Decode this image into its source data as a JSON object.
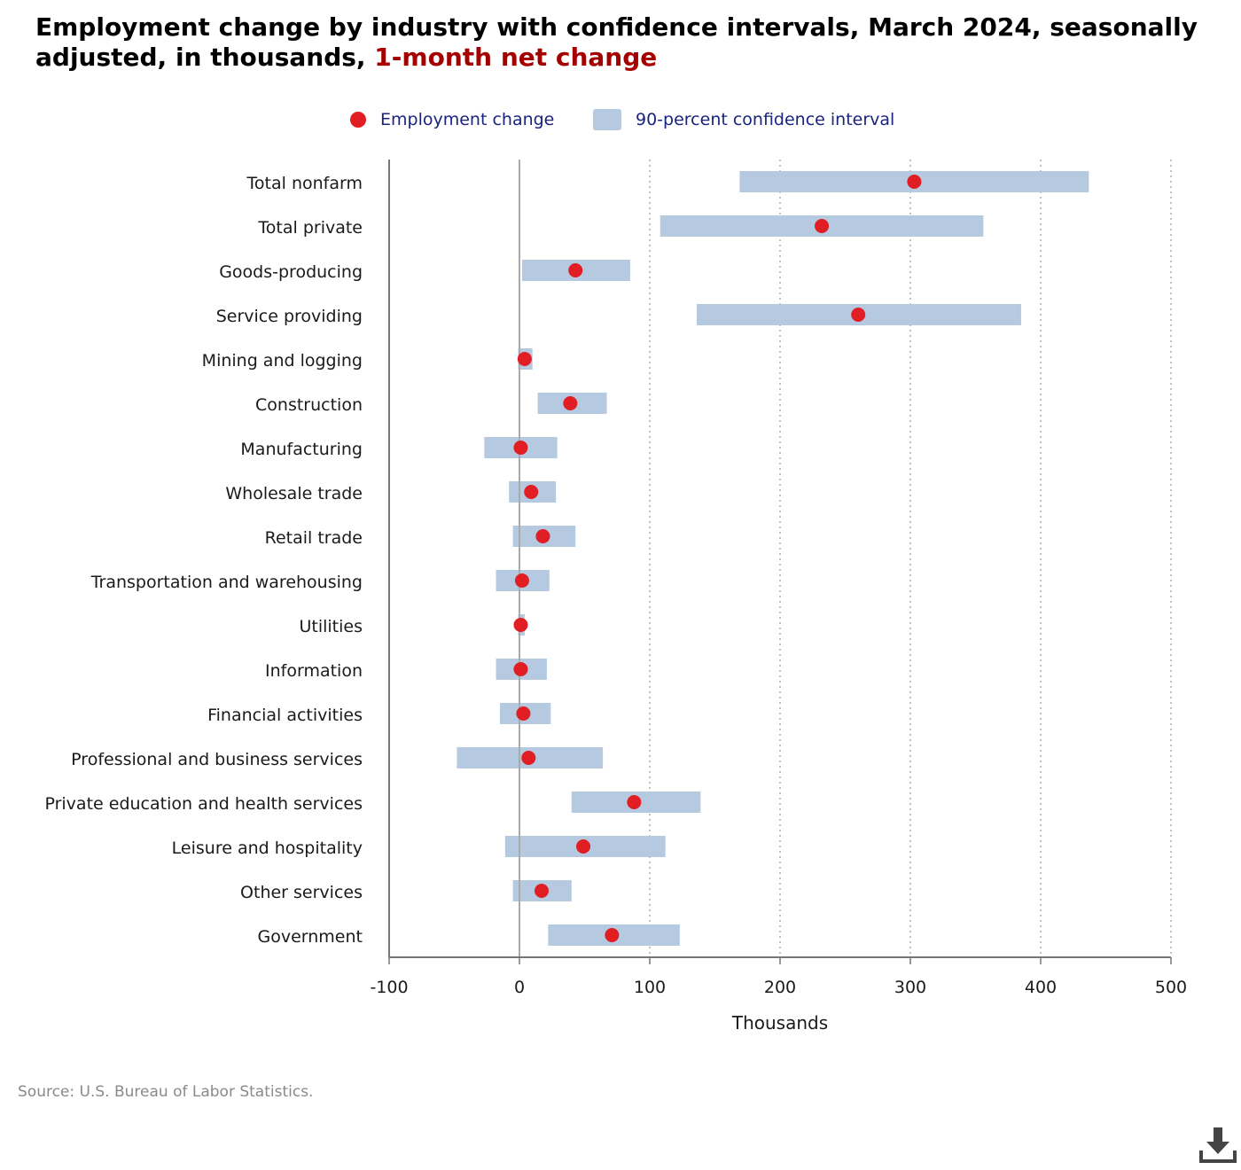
{
  "title": {
    "main": "Employment change by industry with confidence intervals, March 2024, seasonally adjusted, in thousands, ",
    "highlight": "1-month net change"
  },
  "legend": {
    "point_label": "Employment change",
    "interval_label": "90-percent confidence interval"
  },
  "source": "Source: U.S. Bureau of Labor Statistics.",
  "colors": {
    "point": "#e01e24",
    "interval": "#b5c9e0",
    "legend_text": "#1a237e",
    "title_highlight": "#a50000"
  },
  "icons": {
    "download": "download-icon"
  },
  "chart_data": {
    "type": "scatter",
    "orientation": "horizontal",
    "xlabel": "Thousands",
    "xlim": [
      -100,
      500
    ],
    "xticks": [
      -100,
      0,
      100,
      200,
      300,
      400,
      500
    ],
    "grid": "vertical dotted",
    "legend_position": "top-center",
    "categories": [
      "Total nonfarm",
      "Total private",
      "Goods-producing",
      "Service providing",
      "Mining and logging",
      "Construction",
      "Manufacturing",
      "Wholesale trade",
      "Retail trade",
      "Transportation and warehousing",
      "Utilities",
      "Information",
      "Financial activities",
      "Professional and business services",
      "Private education and health services",
      "Leisure and hospitality",
      "Other services",
      "Government"
    ],
    "series": [
      {
        "name": "Employment change",
        "values": [
          303,
          232,
          43,
          260,
          4,
          39,
          1,
          9,
          18,
          2,
          1,
          1,
          3,
          7,
          88,
          49,
          17,
          71
        ]
      },
      {
        "name": "90-percent confidence interval",
        "low": [
          169,
          108,
          2,
          136,
          -1,
          14,
          -27,
          -8,
          -5,
          -18,
          -1,
          -18,
          -15,
          -48,
          40,
          -11,
          -5,
          22
        ],
        "high": [
          437,
          356,
          85,
          385,
          10,
          67,
          29,
          28,
          43,
          23,
          4,
          21,
          24,
          64,
          139,
          112,
          40,
          123
        ]
      }
    ]
  }
}
